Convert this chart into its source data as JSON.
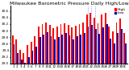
{
  "title": "Milwaukee Barometric Pressure Daily High/Low",
  "bar_width": 0.4,
  "high_color": "#ff0000",
  "low_color": "#0000bb",
  "background_color": "#ffffff",
  "ylim": [
    29.0,
    30.75
  ],
  "ytick_values": [
    29.0,
    29.2,
    29.4,
    29.6,
    29.8,
    30.0,
    30.2,
    30.4,
    30.6
  ],
  "ytick_labels": [
    "29.0",
    "29.2",
    "29.4",
    "29.6",
    "29.8",
    "30.0",
    "30.2",
    "30.4",
    "30.6"
  ],
  "days": [
    1,
    2,
    3,
    4,
    5,
    6,
    7,
    8,
    9,
    10,
    11,
    12,
    13,
    14,
    15,
    16,
    17,
    18,
    19,
    20,
    21,
    22,
    23,
    24,
    25,
    26,
    27,
    28,
    29,
    30,
    31
  ],
  "high": [
    29.85,
    29.72,
    29.42,
    29.32,
    29.55,
    29.65,
    29.82,
    30.12,
    30.2,
    30.25,
    30.18,
    30.08,
    30.12,
    30.2,
    30.22,
    30.18,
    30.1,
    30.15,
    30.2,
    30.25,
    30.5,
    30.55,
    30.4,
    30.22,
    30.48,
    30.55,
    30.12,
    29.98,
    30.25,
    30.38,
    29.92
  ],
  "low": [
    29.58,
    29.32,
    29.12,
    29.02,
    29.2,
    29.38,
    29.52,
    29.8,
    29.88,
    29.95,
    29.82,
    29.72,
    29.8,
    29.88,
    29.92,
    29.85,
    29.72,
    29.82,
    29.88,
    29.92,
    30.12,
    30.18,
    30.05,
    29.9,
    30.1,
    30.2,
    29.75,
    29.62,
    29.92,
    30.05,
    29.6
  ],
  "title_fontsize": 4.5,
  "tick_fontsize": 3.0,
  "legend_fontsize": 3.2,
  "dashed_col_indices": [
    20,
    21,
    22
  ],
  "dashed_color": "#8888ff",
  "legend_labels": [
    "High",
    "Low"
  ]
}
